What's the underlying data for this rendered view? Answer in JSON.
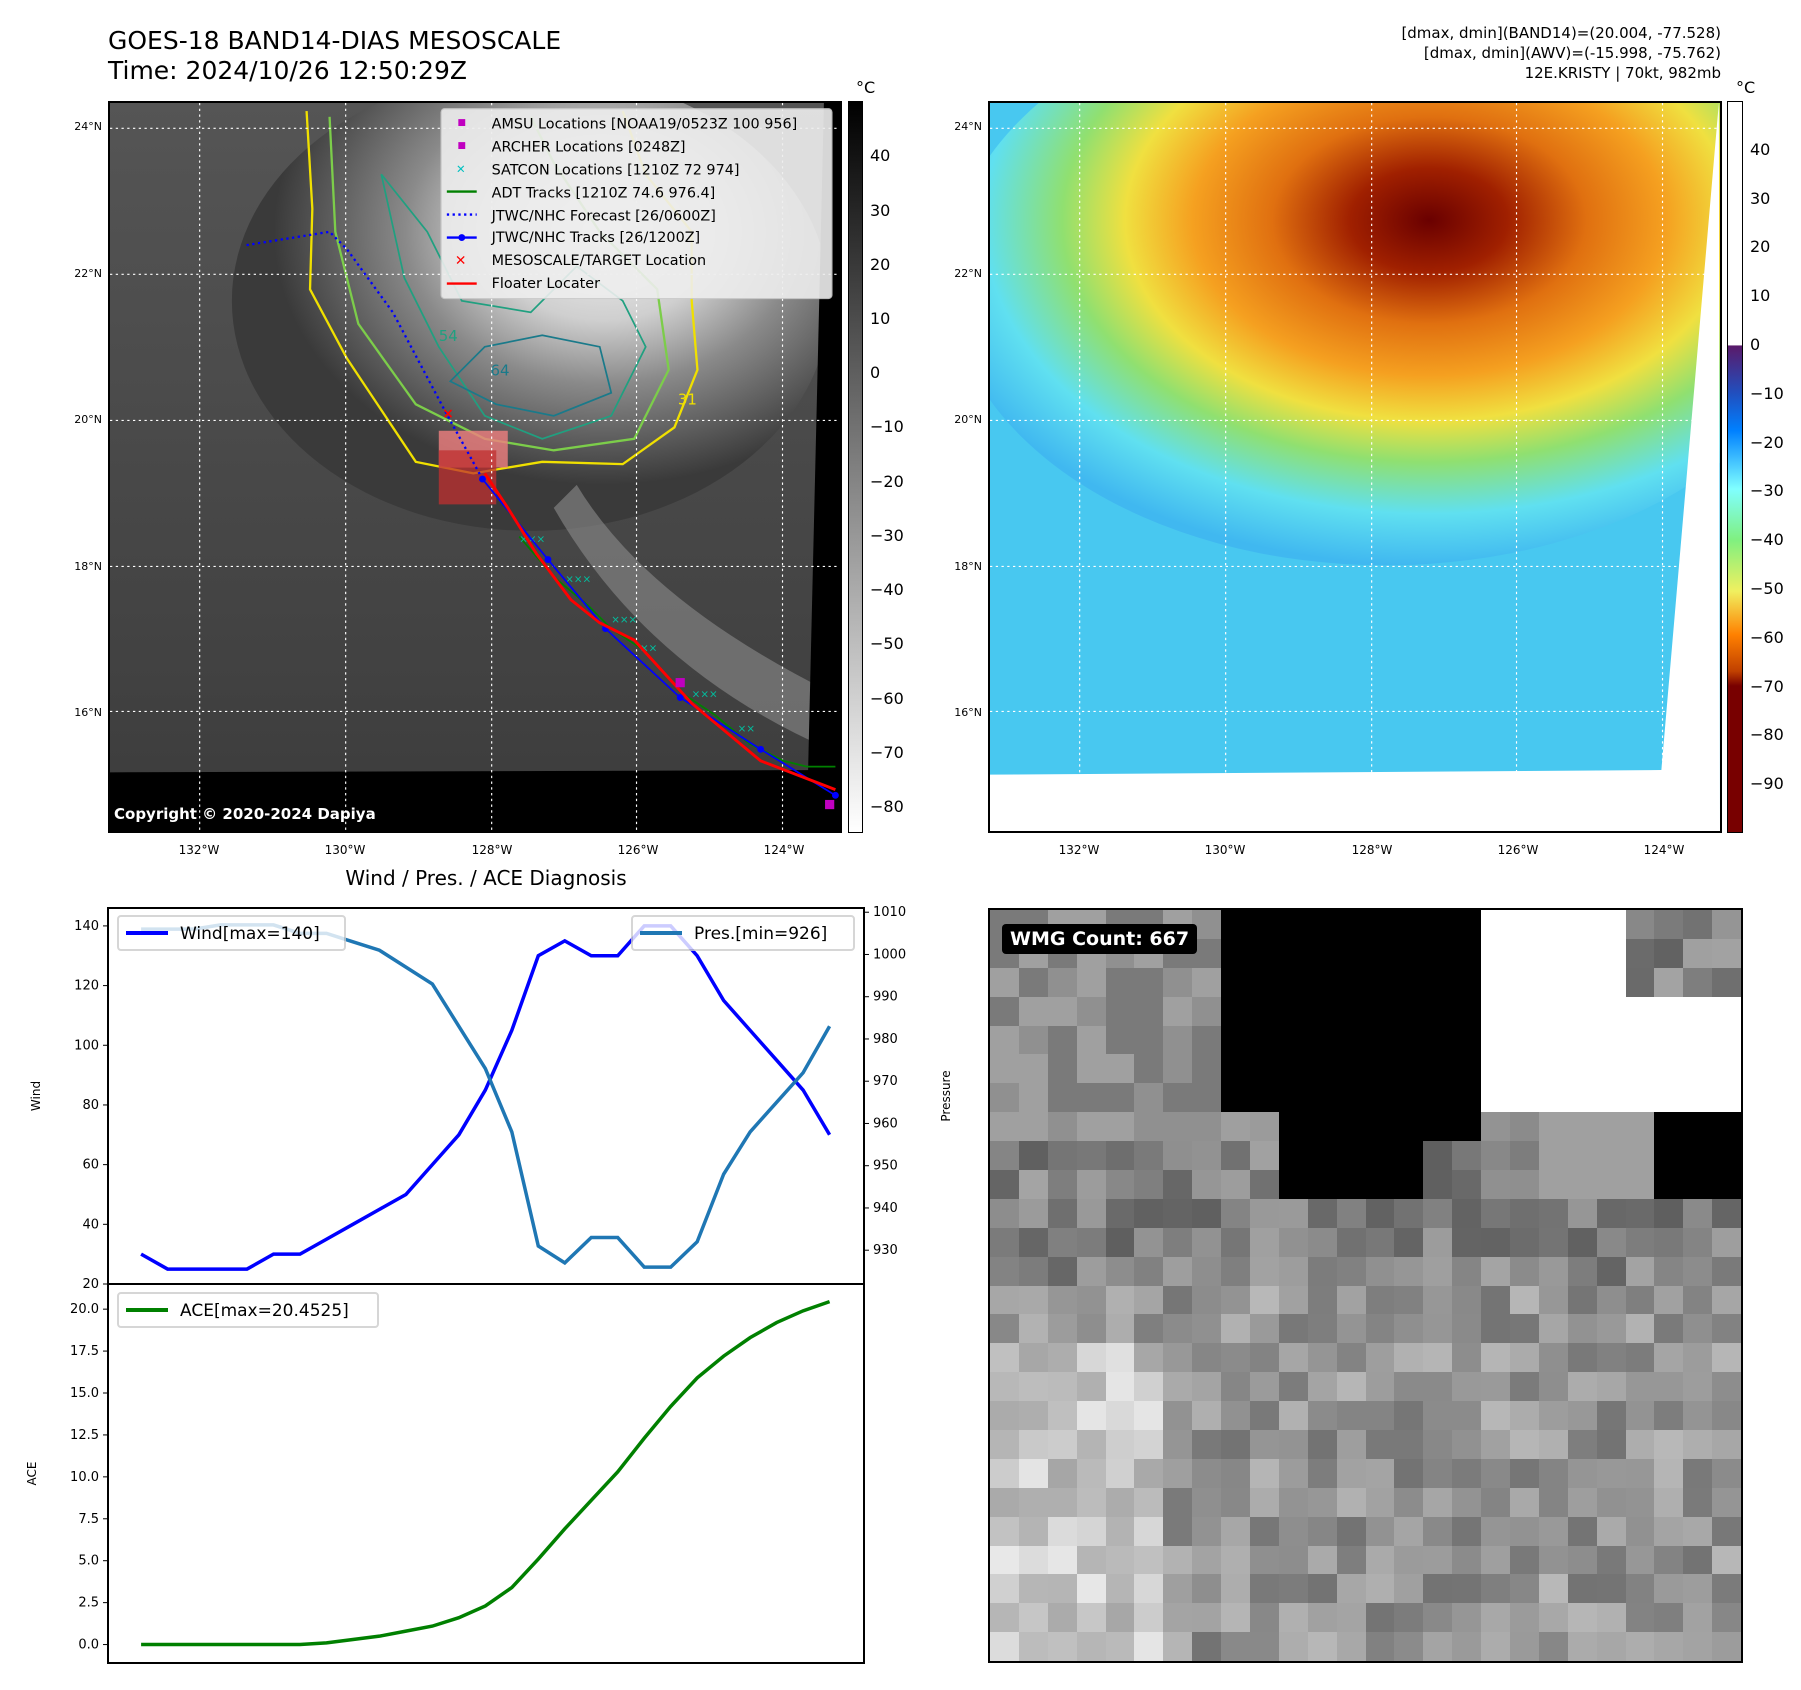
{
  "header": {
    "title": "GOES-18 BAND14-DIAS MESOSCALE",
    "time": "Time: 2024/10/26 12:50:29Z",
    "stats": [
      "[dmax, dmin](BAND14)=(20.004, -77.528)",
      "[dmax, dmin](AWV)=(-15.998, -75.762)",
      "12E.KRISTY | 70kt, 982mb"
    ]
  },
  "map": {
    "lat_labels": [
      "24°N",
      "22°N",
      "20°N",
      "18°N",
      "16°N"
    ],
    "lon_labels": [
      "132°W",
      "130°W",
      "128°W",
      "126°W",
      "124°W"
    ],
    "copyright": "Copyright © 2020-2024 Dapiya",
    "contour_labels": [
      "54",
      "64",
      "31"
    ],
    "legend": [
      "AMSU Locations [NOAA19/0523Z 100 956]",
      "ARCHER Locations [0248Z]",
      "SATCON Locations [1210Z 72 974]",
      "ADT Tracks [1210Z 74.6 976.4]",
      "JTWC/NHC Forecast [26/0600Z]",
      "JTWC/NHC Tracks [26/1200Z]",
      "MESOSCALE/TARGET Location",
      "Floater Locater"
    ],
    "legend_colors": [
      "#c000c0",
      "#c000c0",
      "#00c0c0",
      "#008000",
      "#0000ff",
      "#0000ff",
      "#ff0000",
      "#ff0000"
    ]
  },
  "colorbar_left": {
    "unit": "°C",
    "ticks": [
      "40",
      "30",
      "20",
      "10",
      "0",
      "−10",
      "−20",
      "−30",
      "−40",
      "−50",
      "−60",
      "−70",
      "−80"
    ]
  },
  "colorbar_right": {
    "unit": "°C",
    "ticks": [
      "40",
      "30",
      "20",
      "10",
      "0",
      "−10",
      "−20",
      "−30",
      "−40",
      "−50",
      "−60",
      "−70",
      "−80",
      "−90"
    ]
  },
  "wmg": {
    "label": "WMG Count: 667"
  },
  "chart_data": [
    {
      "type": "line",
      "title": "Wind / Pres. / ACE Diagnosis",
      "ylabel": "Wind",
      "ylabel2": "Pressure",
      "ylim": [
        20,
        146
      ],
      "ylim2": [
        922,
        1011
      ],
      "yticks": [
        "20",
        "40",
        "60",
        "80",
        "100",
        "120",
        "140"
      ],
      "yticks2": [
        "930",
        "940",
        "950",
        "960",
        "970",
        "980",
        "990",
        "1000",
        "1010"
      ],
      "x": [
        0,
        1,
        2,
        3,
        4,
        5,
        6,
        7,
        8,
        9,
        10,
        11,
        12,
        13,
        14,
        15,
        16,
        17,
        18,
        19,
        20,
        21,
        22,
        23,
        24,
        25,
        26
      ],
      "series": [
        {
          "name": "Wind[max=140]",
          "color": "#0000ff",
          "axis": "left",
          "values": [
            30,
            25,
            25,
            25,
            25,
            30,
            30,
            35,
            40,
            45,
            50,
            60,
            70,
            85,
            105,
            130,
            135,
            130,
            130,
            140,
            140,
            130,
            115,
            105,
            95,
            85,
            70
          ]
        },
        {
          "name": "Pres.[min=926]",
          "color": "#1f77b4",
          "axis": "right",
          "values": [
            1006,
            1006,
            1006,
            1007,
            1007,
            1007,
            1005,
            1005,
            1003,
            1001,
            997,
            993,
            983,
            973,
            958,
            931,
            927,
            933,
            933,
            926,
            926,
            932,
            948,
            958,
            965,
            972,
            983
          ]
        }
      ]
    },
    {
      "type": "line",
      "ylabel": "ACE",
      "ylim": [
        -1.1,
        21.5
      ],
      "yticks": [
        "0.0",
        "2.5",
        "5.0",
        "7.5",
        "10.0",
        "12.5",
        "15.0",
        "17.5",
        "20.0"
      ],
      "x": [
        0,
        1,
        2,
        3,
        4,
        5,
        6,
        7,
        8,
        9,
        10,
        11,
        12,
        13,
        14,
        15,
        16,
        17,
        18,
        19,
        20,
        21,
        22,
        23,
        24,
        25,
        26
      ],
      "series": [
        {
          "name": "ACE[max=20.4525]",
          "color": "#008000",
          "values": [
            0,
            0,
            0,
            0,
            0,
            0,
            0,
            0.1,
            0.3,
            0.5,
            0.8,
            1.1,
            1.6,
            2.3,
            3.4,
            5.1,
            6.9,
            8.6,
            10.3,
            12.3,
            14.2,
            15.9,
            17.2,
            18.3,
            19.2,
            19.9,
            20.45
          ]
        }
      ]
    }
  ]
}
